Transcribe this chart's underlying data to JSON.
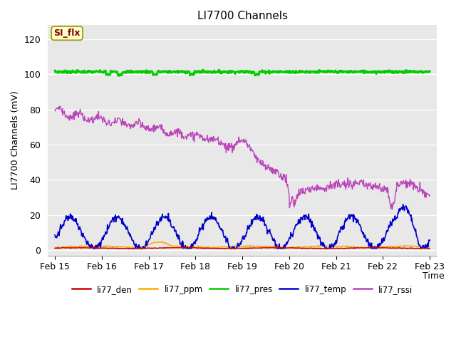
{
  "title": "LI7700 Channels",
  "ylabel": "LI7700 Channels (mV)",
  "xlabel": "Time",
  "xlim_dates": [
    "Feb 15",
    "Feb 16",
    "Feb 17",
    "Feb 18",
    "Feb 19",
    "Feb 20",
    "Feb 21",
    "Feb 22",
    "Feb 23"
  ],
  "ylim": [
    -3,
    128
  ],
  "yticks": [
    0,
    20,
    40,
    60,
    80,
    100,
    120
  ],
  "annotation_text": "SI_flx",
  "annotation_color": "#880000",
  "annotation_bg": "#ffffcc",
  "annotation_edge": "#999900",
  "bg_color": "#e8e8e8",
  "legend_labels": [
    "li77_den",
    "li77_ppm",
    "li77_pres",
    "li77_temp",
    "li77_rssi"
  ],
  "legend_colors": [
    "#cc0000",
    "#ffaa00",
    "#00cc00",
    "#0000cc",
    "#bb44bb"
  ],
  "line_colors": {
    "li77_den": "#cc0000",
    "li77_ppm": "#ffaa00",
    "li77_pres": "#00cc00",
    "li77_temp": "#0000cc",
    "li77_rssi": "#bb44bb"
  },
  "figsize": [
    6.4,
    4.8
  ],
  "dpi": 100
}
